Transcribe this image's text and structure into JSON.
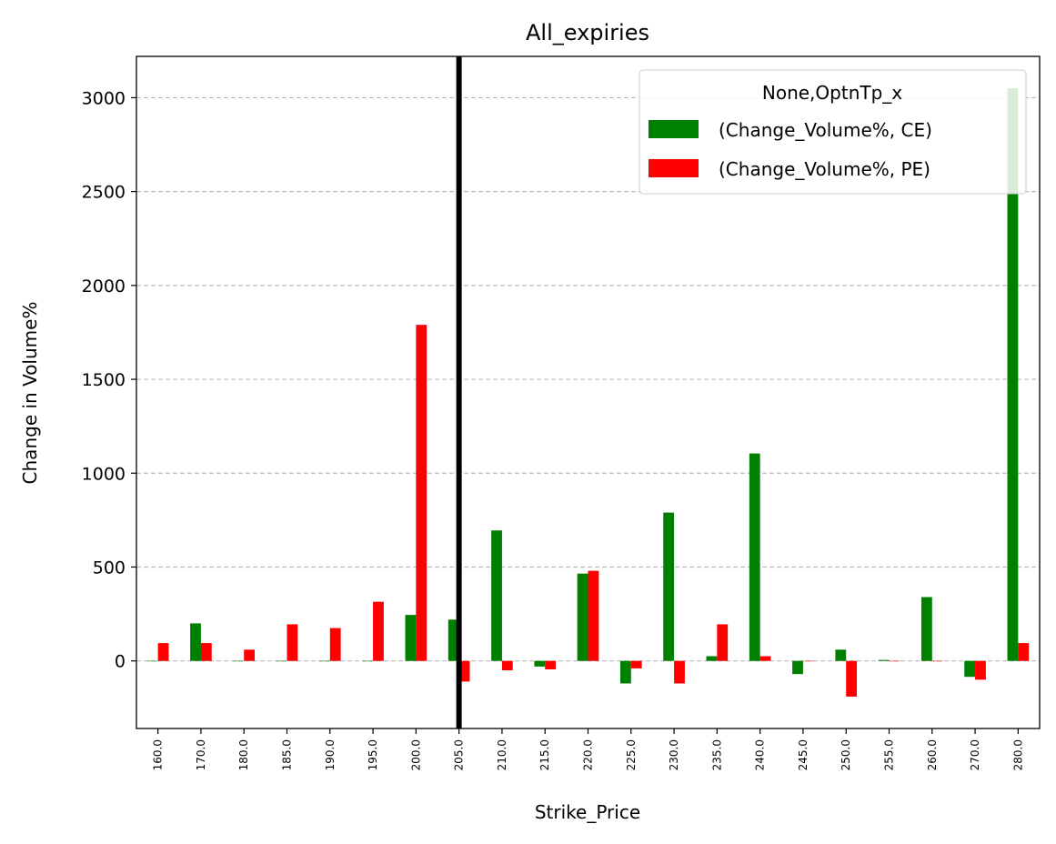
{
  "chart_data": {
    "type": "bar",
    "title": "All_expiries",
    "xlabel": "Strike_Price",
    "ylabel": "Change in Volume%",
    "ylim": [
      -360,
      3220
    ],
    "yticks": [
      "0",
      "500",
      "1000",
      "1500",
      "2000",
      "2500",
      "3000"
    ],
    "grid": "horizontal dashed",
    "legend_position": "top-right",
    "legend_title": "None,OptnTp_x",
    "categories": [
      "160.0",
      "170.0",
      "180.0",
      "185.0",
      "190.0",
      "195.0",
      "200.0",
      "205.0",
      "210.0",
      "215.0",
      "220.0",
      "225.0",
      "230.0",
      "235.0",
      "240.0",
      "245.0",
      "250.0",
      "255.0",
      "260.0",
      "270.0",
      "280.0"
    ],
    "series": [
      {
        "name": "(Change_Volume%, CE)",
        "color": "#008000",
        "values": [
          0,
          200,
          0,
          0,
          0,
          0,
          245,
          220,
          695,
          -30,
          465,
          -120,
          790,
          25,
          1105,
          -70,
          60,
          5,
          340,
          -85,
          3050
        ]
      },
      {
        "name": "(Change_Volume%, PE)",
        "color": "#ff0000",
        "values": [
          95,
          95,
          60,
          195,
          175,
          315,
          1790,
          -110,
          -50,
          -45,
          480,
          -40,
          -120,
          195,
          25,
          0,
          -190,
          0,
          0,
          -100,
          95
        ]
      }
    ],
    "annotations": {
      "vertical_line_at": "205.0",
      "vertical_line_color": "#000000"
    }
  }
}
